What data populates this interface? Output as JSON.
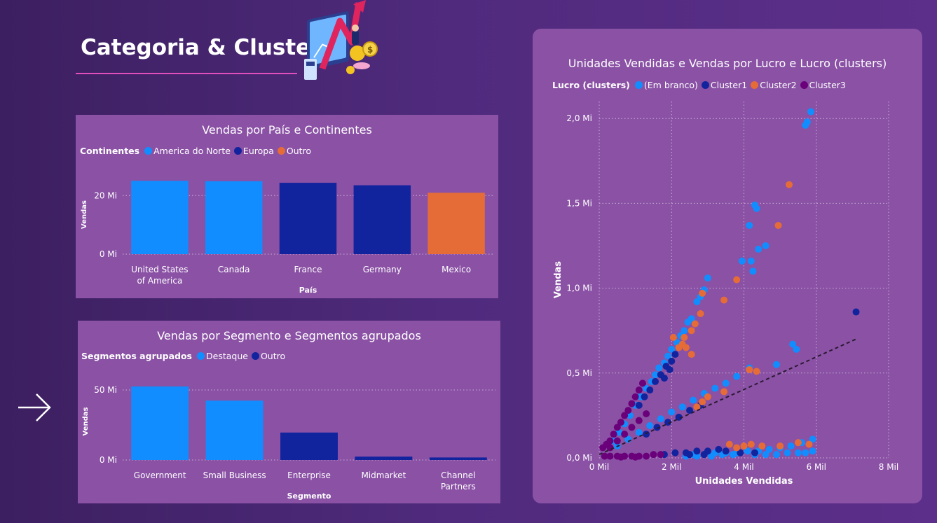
{
  "page": {
    "title": "Categoria & Cluster"
  },
  "colors": {
    "america_do_norte": "#118dff",
    "europa": "#12239e",
    "outro": "#e66c37",
    "destaque": "#118dff",
    "outro_segmento": "#12239e",
    "em_branco": "#118dff",
    "cluster1": "#12239e",
    "cluster2": "#e66c37",
    "cluster3": "#6b007b",
    "panel": "#8a51a5",
    "accent_line": "#e14fbd"
  },
  "icons": {
    "hero": "finance-growth-illustration-icon",
    "nav": "arrow-right-icon"
  },
  "chart_data": [
    {
      "id": "country",
      "type": "bar",
      "title": "Vendas por País e Continentes",
      "legend_title": "Continentes",
      "legend": [
        {
          "name": "America do Norte",
          "color": "#118dff"
        },
        {
          "name": "Europa",
          "color": "#12239e"
        },
        {
          "name": "Outro",
          "color": "#e66c37"
        }
      ],
      "categories": [
        "United States of America",
        "Canada",
        "France",
        "Germany",
        "Mexico"
      ],
      "category_lines": [
        [
          "United States",
          "of America"
        ],
        [
          "Canada"
        ],
        [
          "France"
        ],
        [
          "Germany"
        ],
        [
          "Mexico"
        ]
      ],
      "values": [
        25.03,
        24.89,
        24.35,
        23.51,
        20.95
      ],
      "groups": [
        "America do Norte",
        "America do Norte",
        "Europa",
        "Europa",
        "Outro"
      ],
      "xlabel": "País",
      "ylabel": "Vendas",
      "ylim": [
        0,
        27
      ],
      "yticks": [
        0,
        20
      ],
      "ytick_labels": [
        "0 Mi",
        "20 Mi"
      ],
      "unit": "Mi"
    },
    {
      "id": "segment",
      "type": "bar",
      "title": "Vendas por Segmento e Segmentos agrupados",
      "legend_title": "Segmentos agrupados",
      "legend": [
        {
          "name": "Destaque",
          "color": "#118dff"
        },
        {
          "name": "Outro",
          "color": "#12239e"
        }
      ],
      "categories": [
        "Government",
        "Small Business",
        "Enterprise",
        "Midmarket",
        "Channel Partners"
      ],
      "category_lines": [
        [
          "Government"
        ],
        [
          "Small Business"
        ],
        [
          "Enterprise"
        ],
        [
          "Midmarket"
        ],
        [
          "Channel",
          "Partners"
        ]
      ],
      "values": [
        52.5,
        42.4,
        19.6,
        2.4,
        1.8
      ],
      "groups": [
        "Destaque",
        "Destaque",
        "Outro",
        "Outro",
        "Outro"
      ],
      "xlabel": "Segmento",
      "ylabel": "Vendas",
      "ylim": [
        0,
        55
      ],
      "yticks": [
        0,
        50
      ],
      "ytick_labels": [
        "0 Mi",
        "50 Mi"
      ],
      "unit": "Mi"
    },
    {
      "id": "scatter",
      "type": "scatter",
      "title": "Unidades Vendidas e Vendas por Lucro e Lucro (clusters)",
      "legend_title": "Lucro (clusters)",
      "legend": [
        {
          "name": "(Em branco)",
          "color": "#118dff"
        },
        {
          "name": "Cluster1",
          "color": "#12239e"
        },
        {
          "name": "Cluster2",
          "color": "#e66c37"
        },
        {
          "name": "Cluster3",
          "color": "#6b007b"
        }
      ],
      "xlabel": "Unidades Vendidas",
      "ylabel": "Vendas",
      "xlim": [
        0,
        8000
      ],
      "ylim": [
        0,
        2.1
      ],
      "xticks": [
        0,
        2000,
        4000,
        6000,
        8000
      ],
      "xtick_labels": [
        "0 Mil",
        "2 Mil",
        "4 Mil",
        "6 Mil",
        "8 Mil"
      ],
      "yticks": [
        0,
        0.5,
        1.0,
        1.5,
        2.0
      ],
      "ytick_labels": [
        "0,0 Mi",
        "0,5 Mi",
        "1,0 Mi",
        "1,5 Mi",
        "2,0 Mi"
      ],
      "trend_line": {
        "from": [
          0,
          0.02
        ],
        "to": [
          7100,
          0.7
        ]
      },
      "series": [
        {
          "name": "(Em branco)",
          "color": "#118dff",
          "points": [
            [
              5850,
              2.04
            ],
            [
              5750,
              1.98
            ],
            [
              5700,
              1.96
            ],
            [
              4300,
              1.49
            ],
            [
              4350,
              1.47
            ],
            [
              4150,
              1.37
            ],
            [
              3950,
              1.16
            ],
            [
              4200,
              1.16
            ],
            [
              4400,
              1.23
            ],
            [
              4600,
              1.25
            ],
            [
              4250,
              1.1
            ],
            [
              3000,
              1.06
            ],
            [
              2900,
              0.99
            ],
            [
              2800,
              0.95
            ],
            [
              2700,
              0.92
            ],
            [
              2550,
              0.82
            ],
            [
              2450,
              0.8
            ],
            [
              2350,
              0.75
            ],
            [
              2250,
              0.72
            ],
            [
              2150,
              0.68
            ],
            [
              2000,
              0.64
            ],
            [
              1900,
              0.6
            ],
            [
              1800,
              0.56
            ],
            [
              1650,
              0.53
            ],
            [
              1550,
              0.49
            ],
            [
              1450,
              0.45
            ],
            [
              1300,
              0.41
            ],
            [
              1150,
              0.36
            ],
            [
              1000,
              0.31
            ],
            [
              850,
              0.25
            ],
            [
              700,
              0.2
            ],
            [
              550,
              0.15
            ],
            [
              400,
              0.1
            ],
            [
              5350,
              0.67
            ],
            [
              5450,
              0.64
            ],
            [
              4900,
              0.55
            ],
            [
              4150,
              0.53
            ],
            [
              3800,
              0.48
            ],
            [
              3500,
              0.44
            ],
            [
              3200,
              0.41
            ],
            [
              2900,
              0.38
            ],
            [
              2600,
              0.34
            ],
            [
              2300,
              0.3
            ],
            [
              2000,
              0.27
            ],
            [
              1700,
              0.23
            ],
            [
              1400,
              0.19
            ],
            [
              1100,
              0.15
            ],
            [
              800,
              0.11
            ],
            [
              500,
              0.07
            ],
            [
              5900,
              0.11
            ],
            [
              5600,
              0.09
            ],
            [
              5300,
              0.07
            ],
            [
              5000,
              0.06
            ],
            [
              4700,
              0.05
            ],
            [
              4400,
              0.04
            ],
            [
              4100,
              0.04
            ],
            [
              3800,
              0.03
            ],
            [
              3500,
              0.03
            ],
            [
              3200,
              0.03
            ],
            [
              2900,
              0.02
            ],
            [
              2600,
              0.02
            ],
            [
              5900,
              0.04
            ],
            [
              5700,
              0.03
            ],
            [
              5500,
              0.03
            ],
            [
              5200,
              0.03
            ],
            [
              4900,
              0.02
            ],
            [
              4600,
              0.02
            ],
            [
              4300,
              0.02
            ],
            [
              3700,
              0.02
            ],
            [
              3400,
              0.02
            ],
            [
              3100,
              0.01
            ],
            [
              2700,
              0.01
            ],
            [
              2400,
              0.01
            ]
          ]
        },
        {
          "name": "Cluster1",
          "color": "#12239e",
          "points": [
            [
              7100,
              0.86
            ],
            [
              2100,
              0.61
            ],
            [
              2000,
              0.57
            ],
            [
              1850,
              0.54
            ],
            [
              1700,
              0.49
            ],
            [
              1550,
              0.45
            ],
            [
              1400,
              0.4
            ],
            [
              1250,
              0.36
            ],
            [
              1100,
              0.31
            ],
            [
              1950,
              0.52
            ],
            [
              1800,
              0.47
            ],
            [
              2500,
              0.28
            ],
            [
              2200,
              0.24
            ],
            [
              1900,
              0.21
            ],
            [
              1600,
              0.18
            ],
            [
              1300,
              0.14
            ],
            [
              2800,
              0.31
            ],
            [
              3300,
              0.05
            ],
            [
              3000,
              0.04
            ],
            [
              2700,
              0.04
            ],
            [
              2400,
              0.03
            ],
            [
              2100,
              0.03
            ],
            [
              1800,
              0.02
            ],
            [
              3500,
              0.04
            ],
            [
              3900,
              0.03
            ],
            [
              4300,
              0.03
            ],
            [
              2900,
              0.02
            ],
            [
              2500,
              0.02
            ]
          ]
        },
        {
          "name": "Cluster2",
          "color": "#e66c37",
          "points": [
            [
              5250,
              1.61
            ],
            [
              4950,
              1.37
            ],
            [
              3800,
              1.05
            ],
            [
              3450,
              0.93
            ],
            [
              2850,
              0.97
            ],
            [
              2800,
              0.85
            ],
            [
              2650,
              0.79
            ],
            [
              2550,
              0.75
            ],
            [
              2350,
              0.71
            ],
            [
              2300,
              0.67
            ],
            [
              2200,
              0.65
            ],
            [
              2050,
              0.71
            ],
            [
              2550,
              0.61
            ],
            [
              2400,
              0.65
            ],
            [
              3450,
              0.39
            ],
            [
              4150,
              0.52
            ],
            [
              4350,
              0.51
            ],
            [
              3000,
              0.36
            ],
            [
              2850,
              0.33
            ],
            [
              2700,
              0.3
            ],
            [
              3600,
              0.08
            ],
            [
              4000,
              0.07
            ],
            [
              4200,
              0.08
            ],
            [
              4500,
              0.07
            ],
            [
              5000,
              0.07
            ],
            [
              5500,
              0.09
            ],
            [
              5800,
              0.08
            ],
            [
              3800,
              0.06
            ]
          ]
        },
        {
          "name": "Cluster3",
          "color": "#6b007b",
          "points": [
            [
              1200,
              0.44
            ],
            [
              1100,
              0.4
            ],
            [
              1000,
              0.36
            ],
            [
              900,
              0.32
            ],
            [
              800,
              0.28
            ],
            [
              700,
              0.25
            ],
            [
              600,
              0.21
            ],
            [
              500,
              0.18
            ],
            [
              400,
              0.14
            ],
            [
              300,
              0.1
            ],
            [
              200,
              0.08
            ],
            [
              100,
              0.06
            ],
            [
              1300,
              0.26
            ],
            [
              1100,
              0.22
            ],
            [
              900,
              0.18
            ],
            [
              700,
              0.14
            ],
            [
              500,
              0.1
            ],
            [
              300,
              0.06
            ],
            [
              1700,
              0.02
            ],
            [
              1500,
              0.02
            ],
            [
              1300,
              0.01
            ],
            [
              1100,
              0.01
            ],
            [
              900,
              0.01
            ],
            [
              700,
              0.01
            ],
            [
              500,
              0.01
            ],
            [
              300,
              0.01
            ],
            [
              150,
              0.01
            ],
            [
              1000,
              0.005
            ],
            [
              600,
              0.005
            ]
          ]
        }
      ]
    }
  ]
}
